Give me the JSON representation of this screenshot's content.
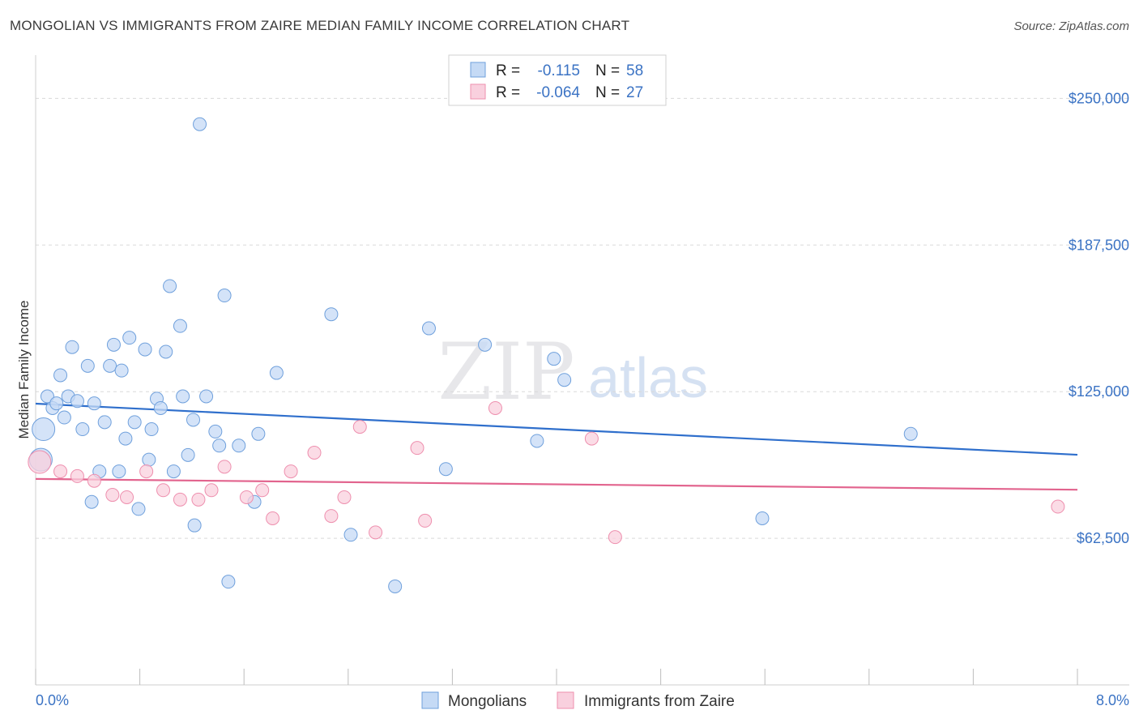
{
  "header": {
    "title": "MONGOLIAN VS IMMIGRANTS FROM ZAIRE MEDIAN FAMILY INCOME CORRELATION CHART",
    "source": "Source: ZipAtlas.com"
  },
  "watermark": {
    "zip": "ZIP",
    "atlas": "atlas"
  },
  "legend": {
    "rows": [
      {
        "r_label": "R =",
        "r_value": "-0.115",
        "n_label": "N =",
        "n_value": "58"
      },
      {
        "r_label": "R =",
        "r_value": "-0.064",
        "n_label": "N =",
        "n_value": "27"
      }
    ]
  },
  "chart_data": {
    "type": "scatter",
    "title": "MONGOLIAN VS IMMIGRANTS FROM ZAIRE MEDIAN FAMILY INCOME CORRELATION CHART",
    "xlabel": "",
    "ylabel": "Median Family Income",
    "xlim": [
      0,
      8
    ],
    "ylim": [
      0,
      265000
    ],
    "x_tick_labels": [
      "0.0%",
      "8.0%"
    ],
    "y_ticks": [
      62500,
      125000,
      187500,
      250000
    ],
    "y_tick_labels": [
      "$62,500",
      "$125,000",
      "$187,500",
      "$250,000"
    ],
    "colors": {
      "mongolians": "#6fa0dc",
      "zaire": "#ee8fae",
      "blue_line": "#2f6fcc",
      "pink_line": "#e2648e",
      "tick_text": "#3b73c4"
    },
    "series": [
      {
        "name": "Mongolians",
        "trend": {
          "x": [
            0,
            8
          ],
          "y": [
            119900,
            98100
          ]
        },
        "points": [
          {
            "x": 0.04,
            "y": 96000,
            "big": true
          },
          {
            "x": 0.06,
            "y": 109000,
            "big": true
          },
          {
            "x": 0.09,
            "y": 123000
          },
          {
            "x": 0.13,
            "y": 118000
          },
          {
            "x": 0.16,
            "y": 120000
          },
          {
            "x": 0.19,
            "y": 132000
          },
          {
            "x": 0.22,
            "y": 114000
          },
          {
            "x": 0.25,
            "y": 123000
          },
          {
            "x": 0.28,
            "y": 144000
          },
          {
            "x": 0.32,
            "y": 121000
          },
          {
            "x": 0.36,
            "y": 109000
          },
          {
            "x": 0.4,
            "y": 136000
          },
          {
            "x": 0.43,
            "y": 78000
          },
          {
            "x": 0.45,
            "y": 120000
          },
          {
            "x": 0.49,
            "y": 91000
          },
          {
            "x": 0.53,
            "y": 112000
          },
          {
            "x": 0.57,
            "y": 136000
          },
          {
            "x": 0.6,
            "y": 145000
          },
          {
            "x": 0.64,
            "y": 91000
          },
          {
            "x": 0.66,
            "y": 134000
          },
          {
            "x": 0.69,
            "y": 105000
          },
          {
            "x": 0.72,
            "y": 148000
          },
          {
            "x": 0.76,
            "y": 112000
          },
          {
            "x": 0.79,
            "y": 75000
          },
          {
            "x": 0.84,
            "y": 143000
          },
          {
            "x": 0.87,
            "y": 96000
          },
          {
            "x": 0.89,
            "y": 109000
          },
          {
            "x": 0.93,
            "y": 122000
          },
          {
            "x": 0.96,
            "y": 118000
          },
          {
            "x": 1.0,
            "y": 142000
          },
          {
            "x": 1.03,
            "y": 170000
          },
          {
            "x": 1.06,
            "y": 91000
          },
          {
            "x": 1.11,
            "y": 153000
          },
          {
            "x": 1.13,
            "y": 123000
          },
          {
            "x": 1.17,
            "y": 98000
          },
          {
            "x": 1.21,
            "y": 113000
          },
          {
            "x": 1.22,
            "y": 68000
          },
          {
            "x": 1.26,
            "y": 239000
          },
          {
            "x": 1.31,
            "y": 123000
          },
          {
            "x": 1.38,
            "y": 108000
          },
          {
            "x": 1.41,
            "y": 102000
          },
          {
            "x": 1.45,
            "y": 166000
          },
          {
            "x": 1.48,
            "y": 44000
          },
          {
            "x": 1.56,
            "y": 102000
          },
          {
            "x": 1.68,
            "y": 78000
          },
          {
            "x": 1.71,
            "y": 107000
          },
          {
            "x": 1.85,
            "y": 133000
          },
          {
            "x": 2.27,
            "y": 158000
          },
          {
            "x": 2.42,
            "y": 64000
          },
          {
            "x": 2.76,
            "y": 42000
          },
          {
            "x": 3.02,
            "y": 152000
          },
          {
            "x": 3.15,
            "y": 92000
          },
          {
            "x": 3.45,
            "y": 145000
          },
          {
            "x": 3.85,
            "y": 104000
          },
          {
            "x": 3.98,
            "y": 139000
          },
          {
            "x": 4.06,
            "y": 130000
          },
          {
            "x": 5.58,
            "y": 71000
          },
          {
            "x": 6.72,
            "y": 107000
          }
        ]
      },
      {
        "name": "Immigrants from Zaire",
        "trend": {
          "x": [
            0,
            8
          ],
          "y": [
            87800,
            83200
          ]
        },
        "points": [
          {
            "x": 0.03,
            "y": 95000,
            "big": true
          },
          {
            "x": 0.19,
            "y": 91000
          },
          {
            "x": 0.32,
            "y": 89000
          },
          {
            "x": 0.45,
            "y": 87000
          },
          {
            "x": 0.59,
            "y": 81000
          },
          {
            "x": 0.7,
            "y": 80000
          },
          {
            "x": 0.85,
            "y": 91000
          },
          {
            "x": 0.98,
            "y": 83000
          },
          {
            "x": 1.11,
            "y": 79000
          },
          {
            "x": 1.25,
            "y": 79000
          },
          {
            "x": 1.35,
            "y": 83000
          },
          {
            "x": 1.45,
            "y": 93000
          },
          {
            "x": 1.62,
            "y": 80000
          },
          {
            "x": 1.74,
            "y": 83000
          },
          {
            "x": 1.82,
            "y": 71000
          },
          {
            "x": 1.96,
            "y": 91000
          },
          {
            "x": 2.14,
            "y": 99000
          },
          {
            "x": 2.27,
            "y": 72000
          },
          {
            "x": 2.37,
            "y": 80000
          },
          {
            "x": 2.49,
            "y": 110000
          },
          {
            "x": 2.61,
            "y": 65000
          },
          {
            "x": 2.93,
            "y": 101000
          },
          {
            "x": 2.99,
            "y": 70000
          },
          {
            "x": 3.53,
            "y": 118000
          },
          {
            "x": 4.27,
            "y": 105000
          },
          {
            "x": 4.45,
            "y": 63000
          },
          {
            "x": 7.85,
            "y": 76000
          }
        ]
      }
    ]
  },
  "bottom_legend": {
    "items": [
      "Mongolians",
      "Immigrants from Zaire"
    ]
  }
}
